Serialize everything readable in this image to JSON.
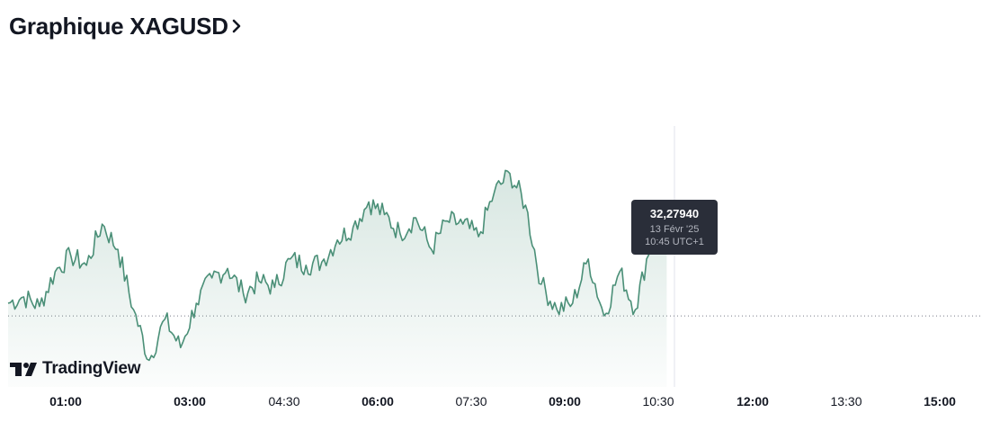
{
  "header": {
    "title": "Graphique XAGUSD"
  },
  "tooltip": {
    "price": "32,27940",
    "date": "13 Févr '25",
    "time": "10:45 UTC+1"
  },
  "logo": {
    "text": "TradingView"
  },
  "colors": {
    "line": "#4a8f77",
    "fill": "#4a8f77",
    "tooltip_bg": "#2a2e39",
    "text": "#131722"
  },
  "chart_data": {
    "type": "area",
    "x_ticks": [
      {
        "label": "01:00",
        "bold": true
      },
      {
        "label": "03:00",
        "bold": true
      },
      {
        "label": "04:30",
        "bold": false
      },
      {
        "label": "06:00",
        "bold": true
      },
      {
        "label": "07:30",
        "bold": false
      },
      {
        "label": "09:00",
        "bold": true
      },
      {
        "label": "10:30",
        "bold": false
      },
      {
        "label": "12:00",
        "bold": true
      },
      {
        "label": "13:30",
        "bold": false
      },
      {
        "label": "15:00",
        "bold": true
      }
    ],
    "x": [
      "00:15",
      "00:30",
      "00:45",
      "01:00",
      "01:15",
      "01:30",
      "01:45",
      "02:00",
      "02:15",
      "02:30",
      "02:45",
      "03:00",
      "03:15",
      "03:30",
      "03:45",
      "04:00",
      "04:15",
      "04:30",
      "04:45",
      "05:00",
      "05:15",
      "05:30",
      "05:45",
      "06:00",
      "06:15",
      "06:30",
      "06:45",
      "07:00",
      "07:15",
      "07:30",
      "07:45",
      "08:00",
      "08:15",
      "08:30",
      "08:45",
      "09:00",
      "09:15",
      "09:30",
      "09:45",
      "10:00",
      "10:15",
      "10:30",
      "10:45"
    ],
    "values": [
      32.0,
      32.02,
      31.99,
      32.1,
      32.15,
      32.12,
      32.25,
      32.17,
      31.98,
      31.82,
      31.95,
      31.86,
      32.0,
      32.08,
      32.11,
      32.03,
      32.07,
      32.05,
      32.14,
      32.12,
      32.13,
      32.2,
      32.24,
      32.32,
      32.28,
      32.22,
      32.27,
      32.17,
      32.26,
      32.25,
      32.21,
      32.35,
      32.41,
      32.31,
      32.06,
      31.98,
      32.0,
      32.14,
      31.96,
      32.1,
      31.98,
      32.2,
      32.2794
    ],
    "reference_value": 31.96,
    "last_value": 32.2794
  }
}
